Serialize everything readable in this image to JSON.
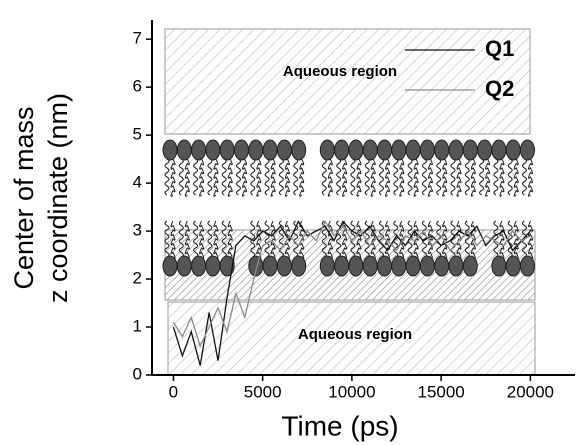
{
  "chart_data": {
    "type": "line",
    "ylabel": [
      "Center of mass",
      "z coordinate (nm)"
    ],
    "xlabel": "Time (ps)",
    "annotations": [
      "Aqueous region",
      "Aqueous region"
    ],
    "x": [
      0,
      500,
      1000,
      1500,
      2000,
      2500,
      3000,
      3500,
      4000,
      4500,
      5000,
      5500,
      6000,
      6500,
      7000,
      7500,
      8000,
      8500,
      9000,
      9500,
      10000,
      10500,
      11000,
      11500,
      12000,
      12500,
      13000,
      13500,
      14000,
      14500,
      15000,
      15500,
      16000,
      16500,
      17000,
      17500,
      18000,
      18500,
      19000,
      19500,
      20000
    ],
    "series": [
      {
        "name": "Q1",
        "color": "#111111",
        "values": [
          1.0,
          0.4,
          0.9,
          0.2,
          1.3,
          0.3,
          1.6,
          2.7,
          2.9,
          2.8,
          3.0,
          2.9,
          3.1,
          2.8,
          3.2,
          2.9,
          3.0,
          3.1,
          2.8,
          3.2,
          3.0,
          2.9,
          3.1,
          2.8,
          2.6,
          2.9,
          2.7,
          3.0,
          2.8,
          2.9,
          2.7,
          2.8,
          3.0,
          2.9,
          3.1,
          2.7,
          2.9,
          3.0,
          2.6,
          2.8,
          3.0
        ]
      },
      {
        "name": "Q2",
        "color": "#8a8a8a",
        "values": [
          1.1,
          0.8,
          1.2,
          0.6,
          1.0,
          1.4,
          0.9,
          1.7,
          1.2,
          2.0,
          2.7,
          2.8,
          2.6,
          2.9,
          2.7,
          3.0,
          2.8,
          3.2,
          2.9,
          3.1,
          2.8,
          3.0,
          2.7,
          2.9,
          2.8,
          2.6,
          2.9,
          2.8,
          3.0,
          2.7,
          2.9,
          2.6,
          2.8,
          3.0,
          2.7,
          2.9,
          2.8,
          2.7,
          3.0,
          2.8,
          2.9
        ]
      }
    ],
    "xlim": [
      -1200,
      22500
    ],
    "xticks": [
      0,
      5000,
      10000,
      15000,
      20000
    ],
    "ylim": [
      0,
      7.4
    ],
    "yticks": [
      0,
      1,
      2,
      3,
      4,
      5,
      6,
      7
    ]
  }
}
